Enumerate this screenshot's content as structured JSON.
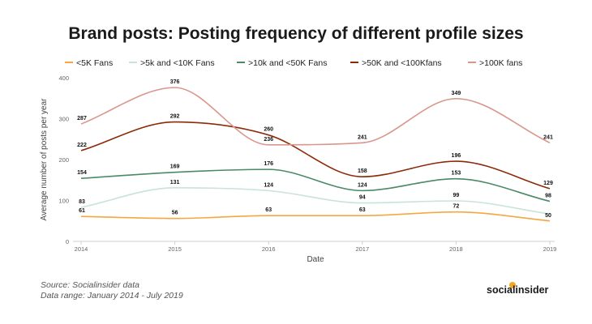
{
  "chart_data": {
    "type": "line",
    "title": "Brand posts: Posting frequency of different profile sizes",
    "xlabel": "Date",
    "ylabel": "Average number of posts per year",
    "x": [
      "2014",
      "2015",
      "2016",
      "2017",
      "2018",
      "2019"
    ],
    "ylim": [
      0,
      400
    ],
    "yticks": [
      "0",
      "100",
      "200",
      "300",
      "400"
    ],
    "grid": false,
    "legend": "top",
    "series": [
      {
        "name": "<5K Fans",
        "color": "#f5a742",
        "values": [
          61,
          56,
          63,
          63,
          72,
          50
        ]
      },
      {
        "name": ">5k and <10K Fans",
        "color": "#c9e3d6",
        "values": [
          83,
          131,
          124,
          94,
          99,
          67
        ]
      },
      {
        "name": ">10k and <50K Fans",
        "color": "#4a8a65",
        "values": [
          154,
          169,
          176,
          124,
          153,
          98
        ]
      },
      {
        "name": ">50K and <100Kfans",
        "color": "#8b2a08",
        "values": [
          222,
          292,
          260,
          158,
          196,
          129
        ]
      },
      {
        "name": ">100K fans",
        "color": "#d9968a",
        "values": [
          287,
          376,
          236,
          241,
          349,
          241
        ]
      }
    ],
    "data_labels": [
      {
        "series": 0,
        "points": [
          0,
          1,
          2,
          3,
          4,
          5
        ]
      },
      {
        "series": 1,
        "points": [
          0,
          1,
          2,
          3,
          4
        ]
      },
      {
        "series": 2,
        "points": [
          0,
          1,
          2,
          3,
          4,
          5
        ]
      },
      {
        "series": 3,
        "points": [
          0,
          1,
          2,
          3,
          4,
          5
        ]
      },
      {
        "series": 4,
        "points": [
          0,
          1,
          2,
          3,
          4,
          5
        ]
      }
    ]
  },
  "footer": {
    "source": "Source: Socialinsider data",
    "range": "Data range: January 2014 - July 2019",
    "brand": "socialinsider"
  },
  "colors": {
    "axis": "#cfcfcf",
    "tick_text": "#666666",
    "label_text": "#111111"
  }
}
